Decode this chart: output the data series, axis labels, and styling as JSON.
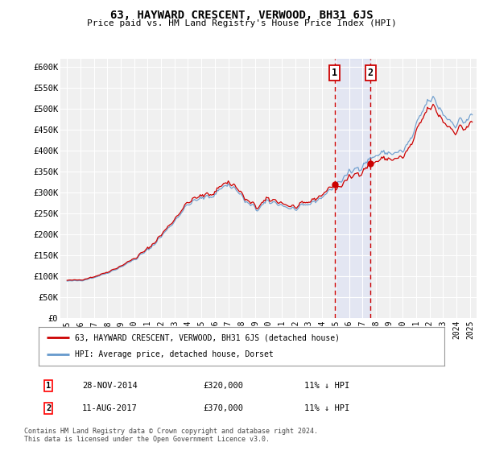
{
  "title": "63, HAYWARD CRESCENT, VERWOOD, BH31 6JS",
  "subtitle": "Price paid vs. HM Land Registry's House Price Index (HPI)",
  "background_color": "#ffffff",
  "plot_bg_color": "#f0f0f0",
  "grid_color": "#ffffff",
  "legend_label_red": "63, HAYWARD CRESCENT, VERWOOD, BH31 6JS (detached house)",
  "legend_label_blue": "HPI: Average price, detached house, Dorset",
  "red_color": "#cc0000",
  "blue_color": "#6699cc",
  "transaction1_date": "28-NOV-2014",
  "transaction1_price": "£320,000",
  "transaction1_hpi": "11% ↓ HPI",
  "transaction2_date": "11-AUG-2017",
  "transaction2_price": "£370,000",
  "transaction2_hpi": "11% ↓ HPI",
  "footnote": "Contains HM Land Registry data © Crown copyright and database right 2024.\nThis data is licensed under the Open Government Licence v3.0.",
  "vline1_x": 2014.917,
  "vline2_x": 2017.583,
  "sold_year1": 2014.917,
  "sold_val1": 320000,
  "sold_year2": 2017.583,
  "sold_val2": 370000,
  "ylim": [
    0,
    620000
  ],
  "yticks": [
    0,
    50000,
    100000,
    150000,
    200000,
    250000,
    300000,
    350000,
    400000,
    450000,
    500000,
    550000,
    600000
  ],
  "ytick_labels": [
    "£0",
    "£50K",
    "£100K",
    "£150K",
    "£200K",
    "£250K",
    "£300K",
    "£350K",
    "£400K",
    "£450K",
    "£500K",
    "£550K",
    "£600K"
  ],
  "xlim": [
    1994.5,
    2025.5
  ],
  "xtick_years": [
    1995,
    1996,
    1997,
    1998,
    1999,
    2000,
    2001,
    2002,
    2003,
    2004,
    2005,
    2006,
    2007,
    2008,
    2009,
    2010,
    2011,
    2012,
    2013,
    2014,
    2015,
    2016,
    2017,
    2018,
    2019,
    2020,
    2021,
    2022,
    2023,
    2024,
    2025
  ]
}
